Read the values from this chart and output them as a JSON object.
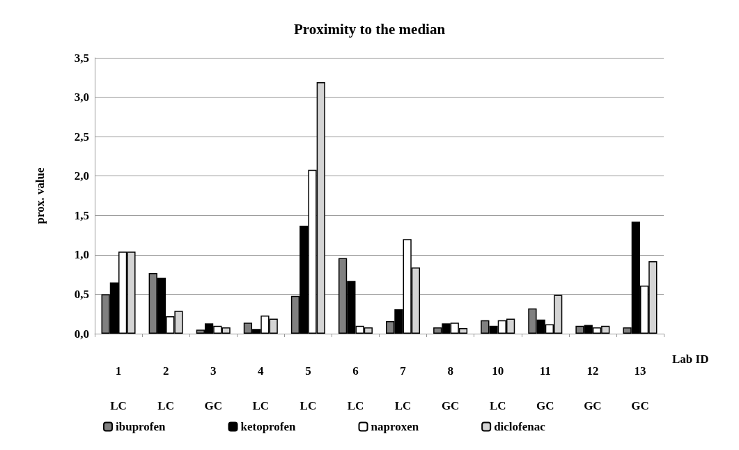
{
  "chart_data": {
    "type": "bar",
    "title": "Proximity to the median",
    "ylabel": "prox. value",
    "xlabel": "Lab ID",
    "categories": [
      "1\nLC",
      "2\nLC",
      "3\nGC",
      "4\nLC",
      "5\nLC",
      "6\nLC",
      "7\nLC",
      "8\nGC",
      "10\nLC",
      "11\nGC",
      "12\nGC",
      "13\nGC"
    ],
    "series": [
      {
        "name": "ibuprofen",
        "color": "#808080",
        "values": [
          0.5,
          0.77,
          0.05,
          0.14,
          0.48,
          0.96,
          0.16,
          0.08,
          0.17,
          0.32,
          0.1,
          0.08
        ]
      },
      {
        "name": "ketoprofen",
        "color": "#000000",
        "values": [
          0.65,
          0.71,
          0.13,
          0.06,
          1.37,
          0.67,
          0.31,
          0.13,
          0.1,
          0.18,
          0.11,
          1.42
        ]
      },
      {
        "name": "naproxen",
        "color": "#ffffff",
        "values": [
          1.04,
          0.22,
          0.1,
          0.23,
          2.08,
          0.1,
          1.2,
          0.14,
          0.17,
          0.12,
          0.08,
          0.61
        ]
      },
      {
        "name": "diclofenac",
        "color": "#d4d4d4",
        "values": [
          1.04,
          0.29,
          0.08,
          0.19,
          3.19,
          0.08,
          0.84,
          0.07,
          0.19,
          0.49,
          0.1,
          0.92
        ]
      }
    ],
    "ylim": [
      0,
      3.5
    ],
    "yticks": [
      {
        "value": 0,
        "label": "0,0"
      },
      {
        "value": 0.5,
        "label": "0,5"
      },
      {
        "value": 1,
        "label": "1,0"
      },
      {
        "value": 1.5,
        "label": "1,5"
      },
      {
        "value": 2,
        "label": "2,0"
      },
      {
        "value": 2.5,
        "label": "2,5"
      },
      {
        "value": 3,
        "label": "3,0"
      },
      {
        "value": 3.5,
        "label": "3,5"
      }
    ],
    "grid": "y",
    "legend": "bottom left"
  }
}
